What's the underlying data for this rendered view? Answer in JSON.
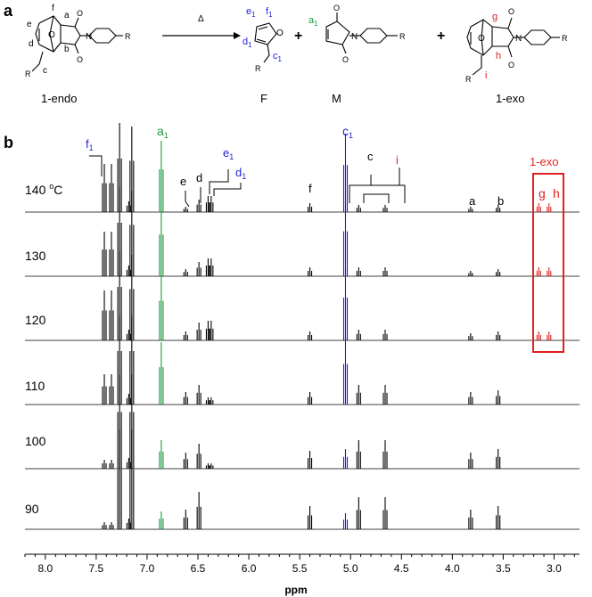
{
  "panel_a": {
    "letter": "a",
    "heat_symbol": "Δ",
    "plus": "+",
    "compounds": [
      {
        "name": "1-endo",
        "atoms": [
          "f",
          "a",
          "e",
          "d",
          "b",
          "c",
          "O",
          "R"
        ]
      },
      {
        "name": "F",
        "atoms": [
          "e1",
          "f1",
          "d1",
          "c1",
          "O",
          "R"
        ]
      },
      {
        "name": "M",
        "atoms": [
          "a1",
          "O",
          "N",
          "R"
        ]
      },
      {
        "name": "1-exo",
        "atoms": [
          "g",
          "h",
          "i",
          "O",
          "R"
        ]
      }
    ]
  },
  "panel_b": {
    "letter": "b",
    "xlabel": "ppm",
    "xticks": [
      "8.0",
      "7.5",
      "7.0",
      "6.5",
      "6.0",
      "5.5",
      "5.0",
      "4.5",
      "4.0",
      "3.5",
      "3.0"
    ],
    "temperatures": [
      "140 °C",
      "130",
      "120",
      "110",
      "100",
      "90"
    ],
    "peak_labels": {
      "f1": "f1",
      "a1": "a1",
      "c1": "c1",
      "e1": "e1",
      "d1": "d1",
      "e": "e",
      "d": "d",
      "f": "f",
      "c": "c",
      "i": "i",
      "a": "a",
      "b": "b",
      "g": "g",
      "h": "h",
      "box": "1-exo"
    },
    "colors": {
      "F": "#1f1fd6",
      "M": "#1a9a3c",
      "exo": "#e02020",
      "endo": "#000000"
    }
  },
  "chart_data": {
    "type": "line",
    "title": "",
    "xlabel": "ppm",
    "xlim": [
      8.2,
      2.75
    ],
    "series": [
      {
        "name": "140 °C",
        "peaks_ppm": [
          7.42,
          7.35,
          7.27,
          7.18,
          7.15,
          6.86,
          6.62,
          6.49,
          6.4,
          6.37,
          5.4,
          5.05,
          4.92,
          4.66,
          3.82,
          3.55,
          3.15,
          3.05
        ]
      },
      {
        "name": "130",
        "peaks_ppm": [
          7.42,
          7.35,
          7.27,
          7.18,
          7.15,
          6.86,
          6.62,
          6.49,
          6.4,
          6.37,
          5.4,
          5.05,
          4.92,
          4.66,
          3.82,
          3.55,
          3.15,
          3.05
        ]
      },
      {
        "name": "120",
        "peaks_ppm": [
          7.42,
          7.35,
          7.27,
          7.18,
          7.15,
          6.86,
          6.62,
          6.49,
          6.4,
          6.37,
          5.4,
          5.05,
          4.92,
          4.66,
          3.82,
          3.55,
          3.15,
          3.05
        ]
      },
      {
        "name": "110",
        "peaks_ppm": [
          7.42,
          7.35,
          7.27,
          7.18,
          7.15,
          6.86,
          6.62,
          6.49,
          6.4,
          6.37,
          5.4,
          5.05,
          4.92,
          4.66,
          3.82,
          3.55
        ]
      },
      {
        "name": "100",
        "peaks_ppm": [
          7.42,
          7.35,
          7.27,
          7.18,
          7.15,
          6.86,
          6.62,
          6.49,
          6.4,
          6.37,
          5.4,
          5.05,
          4.92,
          4.66,
          3.82,
          3.55
        ]
      },
      {
        "name": "90",
        "peaks_ppm": [
          7.42,
          7.35,
          7.27,
          7.18,
          7.15,
          6.86,
          6.62,
          6.49,
          5.4,
          5.05,
          4.92,
          4.66,
          3.82,
          3.55
        ]
      }
    ]
  }
}
